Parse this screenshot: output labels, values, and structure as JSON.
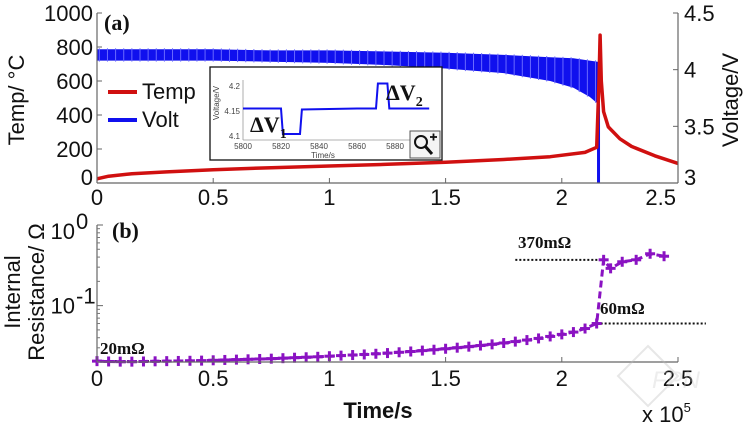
{
  "chart_data": [
    {
      "panel": "(a)",
      "type": "line",
      "xlabel": "",
      "x_scale_note": "x 10^5",
      "xlim": [
        0,
        2.5
      ],
      "xticks": [
        "0",
        "0.5",
        "1",
        "1.5",
        "2",
        "2.5"
      ],
      "ylabel_left": "Temp/ °C",
      "ylim_left": [
        0,
        1000
      ],
      "yticks_left": [
        "0",
        "200",
        "400",
        "600",
        "800",
        "1000"
      ],
      "ylabel_right": "Voltage/V",
      "ylim_right": [
        3,
        4.5
      ],
      "yticks_right": [
        "3",
        "3.5",
        "4",
        "4.5"
      ],
      "legend": {
        "position": "left",
        "entries": [
          {
            "label": "Temp",
            "color": "#d01010"
          },
          {
            "label": "Volt",
            "color": "#1010ee"
          }
        ]
      },
      "series": [
        {
          "name": "Temp",
          "axis": "left",
          "color": "#d01010",
          "x": [
            0,
            0.05,
            0.15,
            0.3,
            0.5,
            0.75,
            1.0,
            1.25,
            1.5,
            1.75,
            1.95,
            2.1,
            2.15,
            2.16,
            2.165,
            2.17,
            2.18,
            2.2,
            2.25,
            2.3,
            2.4,
            2.5
          ],
          "y": [
            25,
            40,
            55,
            65,
            78,
            90,
            100,
            110,
            122,
            138,
            155,
            180,
            210,
            600,
            870,
            600,
            420,
            330,
            260,
            215,
            160,
            115
          ]
        },
        {
          "name": "Volt",
          "axis": "right",
          "color": "#1010ee",
          "band": true,
          "x": [
            0,
            0.25,
            0.5,
            0.75,
            1.0,
            1.25,
            1.5,
            1.75,
            1.95,
            2.05,
            2.12,
            2.155,
            2.16
          ],
          "y_upper": [
            4.18,
            4.18,
            4.18,
            4.17,
            4.17,
            4.16,
            4.15,
            4.13,
            4.11,
            4.1,
            4.08,
            4.07,
            4.05
          ],
          "y_lower": [
            4.08,
            4.08,
            4.08,
            4.07,
            4.06,
            4.04,
            4.01,
            3.97,
            3.9,
            3.84,
            3.76,
            3.7,
            3.0
          ]
        }
      ],
      "inset": {
        "type": "line",
        "xlabel": "Time/s",
        "ylabel": "Voltage/V",
        "xlim": [
          5800,
          5900
        ],
        "xticks": [
          "5800",
          "5820",
          "5840",
          "5860",
          "5880"
        ],
        "ylim": [
          4.1,
          4.2
        ],
        "yticks": [
          "4.1",
          "4.15",
          "4.2"
        ],
        "series": {
          "color": "#1010ee",
          "x": [
            5800,
            5820,
            5821,
            5830,
            5831,
            5860,
            5870,
            5871,
            5876,
            5877,
            5898
          ],
          "y": [
            4.155,
            4.155,
            4.104,
            4.104,
            4.153,
            4.155,
            4.155,
            4.205,
            4.205,
            4.155,
            4.155
          ]
        },
        "annotations": [
          {
            "text": "ΔV",
            "sub": "1"
          },
          {
            "text": "ΔV",
            "sub": "2"
          }
        ],
        "zoom_icon": "magnifier-plus-icon"
      }
    },
    {
      "panel": "(b)",
      "type": "line",
      "xlabel": "Time/s",
      "x_scale_note": "x 10",
      "x_scale_exp": "5",
      "xlim": [
        0,
        2.5
      ],
      "xticks": [
        "0",
        "0.5",
        "1",
        "1.5",
        "2",
        "2.5"
      ],
      "ylabel": [
        "Internal",
        "Resistance/ Ω"
      ],
      "yscale": "log",
      "ylim": [
        0.02,
        1
      ],
      "yticks": [
        {
          "base": "10",
          "exp": "0"
        },
        {
          "base": "10",
          "exp": "-1"
        }
      ],
      "series": [
        {
          "name": "Internal Resistance",
          "color": "#8a12c2",
          "marker": "+",
          "linestyle": "dashed",
          "x": [
            0.0,
            0.05,
            0.1,
            0.15,
            0.2,
            0.25,
            0.3,
            0.35,
            0.4,
            0.45,
            0.5,
            0.55,
            0.6,
            0.65,
            0.7,
            0.75,
            0.8,
            0.85,
            0.9,
            0.95,
            1.0,
            1.05,
            1.1,
            1.15,
            1.2,
            1.25,
            1.3,
            1.35,
            1.4,
            1.45,
            1.5,
            1.55,
            1.6,
            1.65,
            1.7,
            1.75,
            1.8,
            1.85,
            1.9,
            1.95,
            2.0,
            2.05,
            2.1,
            2.15,
            2.18,
            2.21,
            2.26,
            2.32,
            2.38,
            2.44
          ],
          "y": [
            0.0205,
            0.0203,
            0.0202,
            0.0202,
            0.0203,
            0.0204,
            0.0205,
            0.0206,
            0.0207,
            0.0208,
            0.021,
            0.0212,
            0.0214,
            0.0216,
            0.0218,
            0.022,
            0.0223,
            0.0226,
            0.0229,
            0.0232,
            0.0236,
            0.024,
            0.0244,
            0.0248,
            0.0253,
            0.0258,
            0.0264,
            0.027,
            0.0277,
            0.0284,
            0.0292,
            0.0301,
            0.031,
            0.032,
            0.0331,
            0.0344,
            0.0358,
            0.0374,
            0.0392,
            0.0415,
            0.044,
            0.047,
            0.052,
            0.06,
            0.37,
            0.29,
            0.35,
            0.37,
            0.44,
            0.41
          ]
        }
      ],
      "annotations": [
        {
          "text": "20mΩ",
          "value": 0.02
        },
        {
          "text": "60mΩ",
          "value": 0.06
        },
        {
          "text": "370mΩ",
          "value": 0.37
        }
      ]
    }
  ],
  "watermark": "FPN"
}
